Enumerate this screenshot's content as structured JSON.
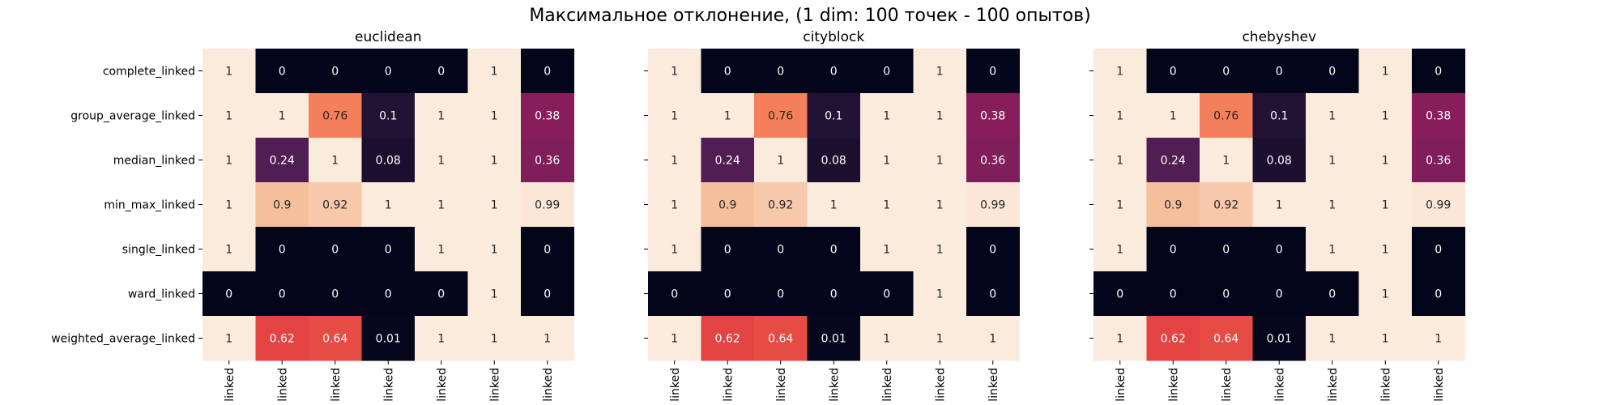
{
  "chart_data": {
    "type": "heatmap",
    "title": "Максимальное отклонение, (1 dim: 100 точек - 100 опытов)",
    "rows": [
      "complete_linked",
      "group_average_linked",
      "median_linked",
      "min_max_linked",
      "single_linked",
      "ward_linked",
      "weighted_average_linked"
    ],
    "columns": [
      "linked",
      "linked",
      "linked",
      "linked",
      "linked",
      "linked",
      "linked"
    ],
    "color_range": [
      0,
      1
    ],
    "colormap": "rocket",
    "panels": [
      {
        "title": "euclidean",
        "values": [
          [
            1,
            0,
            0,
            0,
            0,
            1,
            0
          ],
          [
            1,
            1,
            0.76,
            0.1,
            1,
            1,
            0.38
          ],
          [
            1,
            0.24,
            1,
            0.08,
            1,
            1,
            0.36
          ],
          [
            1,
            0.9,
            0.92,
            1,
            1,
            1,
            0.99
          ],
          [
            1,
            0,
            0,
            0,
            1,
            1,
            0
          ],
          [
            0,
            0,
            0,
            0,
            0,
            1,
            0
          ],
          [
            1,
            0.62,
            0.64,
            0.01,
            1,
            1,
            1
          ]
        ]
      },
      {
        "title": "cityblock",
        "values": [
          [
            1,
            0,
            0,
            0,
            0,
            1,
            0
          ],
          [
            1,
            1,
            0.76,
            0.1,
            1,
            1,
            0.38
          ],
          [
            1,
            0.24,
            1,
            0.08,
            1,
            1,
            0.36
          ],
          [
            1,
            0.9,
            0.92,
            1,
            1,
            1,
            0.99
          ],
          [
            1,
            0,
            0,
            0,
            1,
            1,
            0
          ],
          [
            0,
            0,
            0,
            0,
            0,
            1,
            0
          ],
          [
            1,
            0.62,
            0.64,
            0.01,
            1,
            1,
            1
          ]
        ]
      },
      {
        "title": "chebyshev",
        "values": [
          [
            1,
            0,
            0,
            0,
            0,
            1,
            0
          ],
          [
            1,
            1,
            0.76,
            0.1,
            1,
            1,
            0.38
          ],
          [
            1,
            0.24,
            1,
            0.08,
            1,
            1,
            0.36
          ],
          [
            1,
            0.9,
            0.92,
            1,
            1,
            1,
            0.99
          ],
          [
            1,
            0,
            0,
            0,
            1,
            1,
            0
          ],
          [
            0,
            0,
            0,
            0,
            0,
            1,
            0
          ],
          [
            1,
            0.62,
            0.64,
            0.01,
            1,
            1,
            1
          ]
        ]
      }
    ]
  }
}
